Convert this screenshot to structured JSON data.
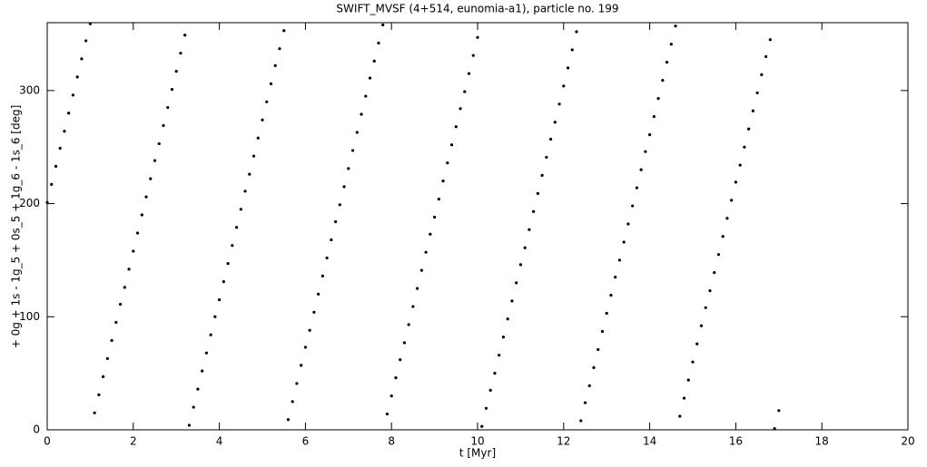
{
  "chart_data": {
    "type": "scatter",
    "title": "SWIFT_MVSF (4+514, eunomia-a1), particle no. 199",
    "x_label": "t [Myr]",
    "y_label": "+ 0g + 1s - 1g_5 + 0s_5 + 1g_6 - 1s_6 [deg]",
    "color": "#000000",
    "xlim": [
      0,
      20
    ],
    "ylim": [
      0,
      360
    ],
    "xticks": [
      0,
      2,
      4,
      6,
      8,
      10,
      12,
      14,
      16,
      18,
      20
    ],
    "yticks": [
      0,
      100,
      200,
      300
    ],
    "x": [
      0,
      0.1,
      0.2,
      0.3,
      0.4,
      0.5,
      0.6,
      0.7,
      0.8,
      0.9,
      1,
      1.1,
      1.2,
      1.3,
      1.4,
      1.5,
      1.6,
      1.7,
      1.8,
      1.9,
      2,
      2.1,
      2.2,
      2.3,
      2.4,
      2.5,
      2.6,
      2.7,
      2.8,
      2.9,
      3,
      3.1,
      3.2,
      3.3,
      3.4,
      3.5,
      3.6,
      3.7,
      3.8,
      3.9,
      4,
      4.1,
      4.2,
      4.3,
      4.4,
      4.5,
      4.6,
      4.7,
      4.8,
      4.9,
      5,
      5.1,
      5.2,
      5.3,
      5.4,
      5.5,
      5.6,
      5.7,
      5.8,
      5.9,
      6,
      6.1,
      6.2,
      6.3,
      6.4,
      6.5,
      6.6,
      6.7,
      6.8,
      6.9,
      7,
      7.1,
      7.2,
      7.3,
      7.4,
      7.5,
      7.6,
      7.7,
      7.8,
      7.9,
      8,
      8.1,
      8.2,
      8.3,
      8.4,
      8.5,
      8.6,
      8.7,
      8.8,
      8.9,
      9,
      9.1,
      9.2,
      9.3,
      9.4,
      9.5,
      9.6,
      9.7,
      9.8,
      9.9,
      10,
      10.1,
      10.2,
      10.3,
      10.4,
      10.5,
      10.6,
      10.7,
      10.8,
      10.9,
      11,
      11.1,
      11.2,
      11.3,
      11.4,
      11.5,
      11.6,
      11.7,
      11.8,
      11.9,
      12,
      12.1,
      12.2,
      12.3,
      12.4,
      12.5,
      12.6,
      12.7,
      12.8,
      12.9,
      13,
      13.1,
      13.2,
      13.3,
      13.4,
      13.5,
      13.6,
      13.7,
      13.8,
      13.9,
      14,
      14.1,
      14.2,
      14.3,
      14.4,
      14.5,
      14.6,
      14.7,
      14.8,
      14.9,
      15,
      15.1,
      15.2,
      15.3,
      15.4,
      15.5,
      15.6,
      15.7,
      15.8,
      15.9,
      16,
      16.1,
      16.2,
      16.3,
      16.4,
      16.5,
      16.6,
      16.7,
      16.8,
      16.9,
      17
    ],
    "values": [
      201,
      217,
      233,
      249,
      264,
      280,
      296,
      312,
      328,
      344,
      359,
      15,
      31,
      47,
      63,
      79,
      95,
      111,
      126,
      142,
      158,
      174,
      190,
      206,
      222,
      238,
      253,
      269,
      285,
      301,
      317,
      333,
      349,
      4,
      20,
      36,
      52,
      68,
      84,
      100,
      115,
      131,
      147,
      163,
      179,
      195,
      211,
      226,
      242,
      258,
      274,
      290,
      306,
      322,
      337,
      353,
      9,
      25,
      41,
      57,
      73,
      88,
      104,
      120,
      136,
      152,
      168,
      184,
      199,
      215,
      231,
      247,
      263,
      279,
      295,
      311,
      326,
      342,
      358,
      14,
      30,
      46,
      62,
      77,
      93,
      109,
      125,
      141,
      157,
      173,
      188,
      204,
      220,
      236,
      252,
      268,
      284,
      299,
      315,
      331,
      347,
      3,
      19,
      35,
      50,
      66,
      82,
      98,
      114,
      130,
      146,
      161,
      177,
      193,
      209,
      225,
      241,
      257,
      272,
      288,
      304,
      320,
      336,
      352,
      8,
      24,
      39,
      55,
      71,
      87,
      103,
      119,
      135,
      150,
      166,
      182,
      198,
      214,
      230,
      246,
      261,
      277,
      293,
      309,
      325,
      341,
      357,
      12,
      28,
      44,
      60,
      76,
      92,
      108,
      123,
      139,
      155,
      171,
      187,
      203,
      219,
      234,
      250,
      266,
      282,
      298,
      314,
      330,
      345,
      1,
      17
    ]
  }
}
